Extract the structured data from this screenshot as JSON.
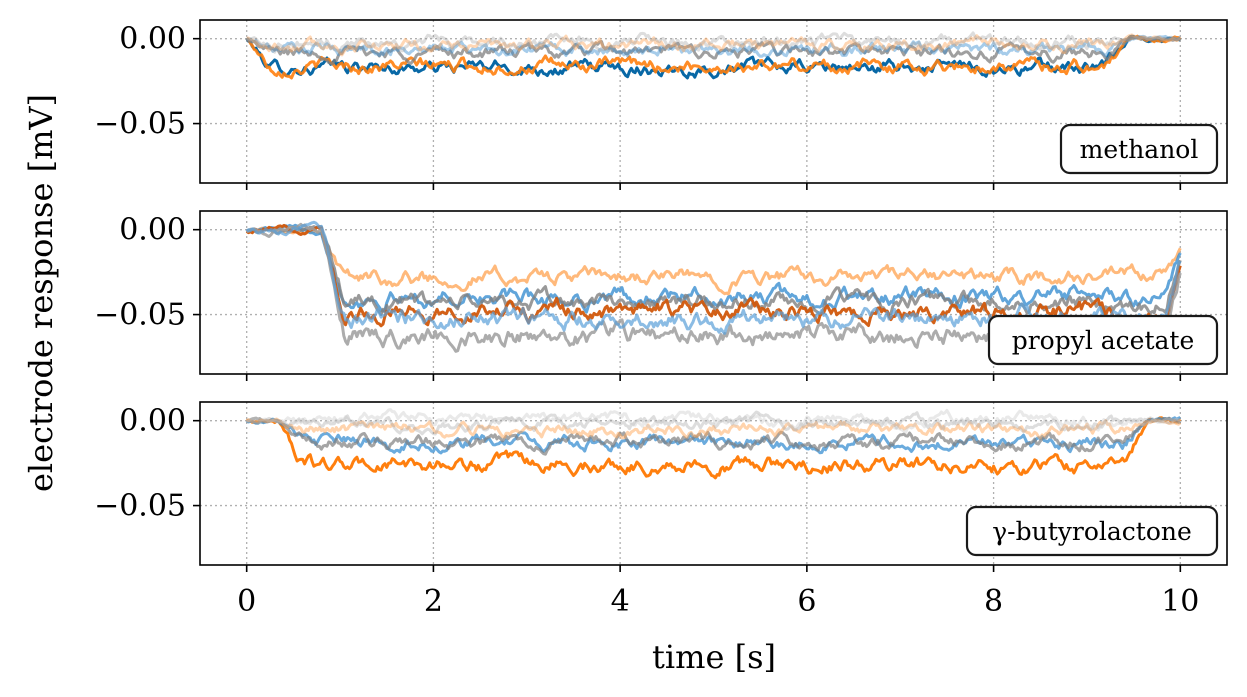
{
  "chart_data": {
    "type": "line",
    "xlabel": "time [s]",
    "ylabel": "electrode response [mV]",
    "xlim": [
      -0.5,
      10.5
    ],
    "xticks": [
      0,
      2,
      4,
      6,
      8,
      10
    ],
    "xtick_labels": [
      "0",
      "2",
      "4",
      "6",
      "8",
      "10"
    ],
    "grid": true,
    "colors": {
      "blue": "#0868a6",
      "orange": "#ff7f0e",
      "gray": "#7f7f7f"
    },
    "panels": [
      {
        "annotation": "methanol",
        "ylim": [
          -0.085,
          0.011
        ],
        "yticks": [
          0.0,
          -0.05
        ],
        "ytick_labels": [
          "0.00",
          "−0.05"
        ],
        "stim_on": 0.0,
        "stim_off": 9.2,
        "series": [
          {
            "color": "#0868a6",
            "opacity": 1.0,
            "level": -0.017
          },
          {
            "color": "#ff7f0e",
            "opacity": 0.9,
            "level": -0.016
          },
          {
            "color": "#7f7f7f",
            "opacity": 0.75,
            "level": -0.008
          },
          {
            "color": "#3a8fd1",
            "opacity": 0.45,
            "level": -0.006
          },
          {
            "color": "#ffa75a",
            "opacity": 0.45,
            "level": -0.004
          },
          {
            "color": "#9e9e9e",
            "opacity": 0.35,
            "level": -0.002
          }
        ]
      },
      {
        "annotation": "propyl acetate",
        "ylim": [
          -0.085,
          0.011
        ],
        "yticks": [
          0.0,
          -0.05
        ],
        "ytick_labels": [
          "0.00",
          "−0.05"
        ],
        "stim_on": 0.8,
        "stim_off": 9.85,
        "series": [
          {
            "color": "#ffa75a",
            "opacity": 0.8,
            "level": -0.028
          },
          {
            "color": "#3a8fd1",
            "opacity": 0.8,
            "level": -0.04
          },
          {
            "color": "#7f7f7f",
            "opacity": 0.8,
            "level": -0.043
          },
          {
            "color": "#d1580c",
            "opacity": 0.95,
            "level": -0.048
          },
          {
            "color": "#9e9e9e",
            "opacity": 0.85,
            "level": -0.062
          },
          {
            "color": "#5a9fd8",
            "opacity": 0.7,
            "level": -0.052
          }
        ]
      },
      {
        "annotation": "γ-butyrolactone",
        "ylim": [
          -0.085,
          0.011
        ],
        "yticks": [
          0.0,
          -0.05
        ],
        "ytick_labels": [
          "0.00",
          "−0.05"
        ],
        "stim_on": 0.35,
        "stim_off": 9.4,
        "series": [
          {
            "color": "#ff7f0e",
            "opacity": 1.0,
            "level": -0.026
          },
          {
            "color": "#3a8fd1",
            "opacity": 0.75,
            "level": -0.013
          },
          {
            "color": "#7f7f7f",
            "opacity": 0.7,
            "level": -0.012
          },
          {
            "color": "#ffa75a",
            "opacity": 0.5,
            "level": -0.005
          },
          {
            "color": "#9e9e9e",
            "opacity": 0.35,
            "level": -0.002
          },
          {
            "color": "#c7c7c7",
            "opacity": 0.4,
            "level": 0.001
          }
        ]
      }
    ]
  }
}
